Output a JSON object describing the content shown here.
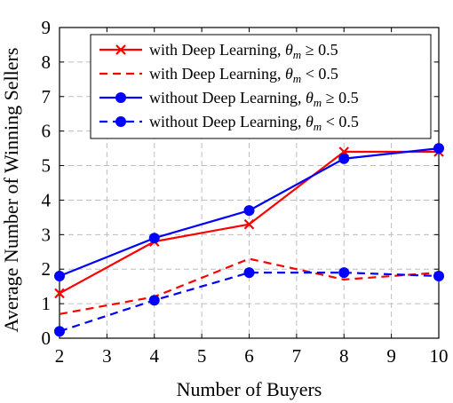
{
  "chart_data": {
    "type": "line",
    "xlabel": "Number of Buyers",
    "ylabel": "Average Number of Winning Sellers",
    "xlim": [
      2,
      10
    ],
    "ylim": [
      0,
      9
    ],
    "xticks": [
      "2",
      "3",
      "4",
      "5",
      "6",
      "7",
      "8",
      "9",
      "10"
    ],
    "yticks": [
      "0",
      "1",
      "2",
      "3",
      "4",
      "5",
      "6",
      "7",
      "8",
      "9"
    ],
    "grid": true,
    "legend_position": "top-right",
    "series": [
      {
        "name": "with Deep Learning, θm ≥ 0.5",
        "legend_prefix": "with Deep Learning, ",
        "legend_symbol": "θ",
        "legend_sub": "m",
        "legend_op": " ≥ 0.5",
        "color": "#ff0000",
        "dash": "solid",
        "marker": "x",
        "x": [
          2,
          4,
          6,
          8,
          10
        ],
        "y": [
          1.3,
          2.8,
          3.3,
          5.4,
          5.4
        ]
      },
      {
        "name": "with Deep Learning, θm < 0.5",
        "legend_prefix": "with Deep Learning, ",
        "legend_symbol": "θ",
        "legend_sub": "m",
        "legend_op": " < 0.5",
        "color": "#ff0000",
        "dash": "dashed",
        "marker": "none",
        "x": [
          2,
          4,
          6,
          8,
          10
        ],
        "y": [
          0.7,
          1.2,
          2.3,
          1.7,
          1.9
        ]
      },
      {
        "name": "without Deep Learning, θm ≥ 0.5",
        "legend_prefix": "without Deep Learning, ",
        "legend_symbol": "θ",
        "legend_sub": "m",
        "legend_op": " ≥ 0.5",
        "color": "#0000ff",
        "dash": "solid",
        "marker": "circle",
        "x": [
          2,
          4,
          6,
          8,
          10
        ],
        "y": [
          1.8,
          2.9,
          3.7,
          5.2,
          5.5
        ]
      },
      {
        "name": "without Deep Learning, θm < 0.5",
        "legend_prefix": "without Deep Learning, ",
        "legend_symbol": "θ",
        "legend_sub": "m",
        "legend_op": " < 0.5",
        "color": "#0000ff",
        "dash": "dashed",
        "marker": "circle",
        "x": [
          2,
          4,
          6,
          8,
          10
        ],
        "y": [
          0.2,
          1.1,
          1.9,
          1.9,
          1.8
        ]
      }
    ]
  }
}
